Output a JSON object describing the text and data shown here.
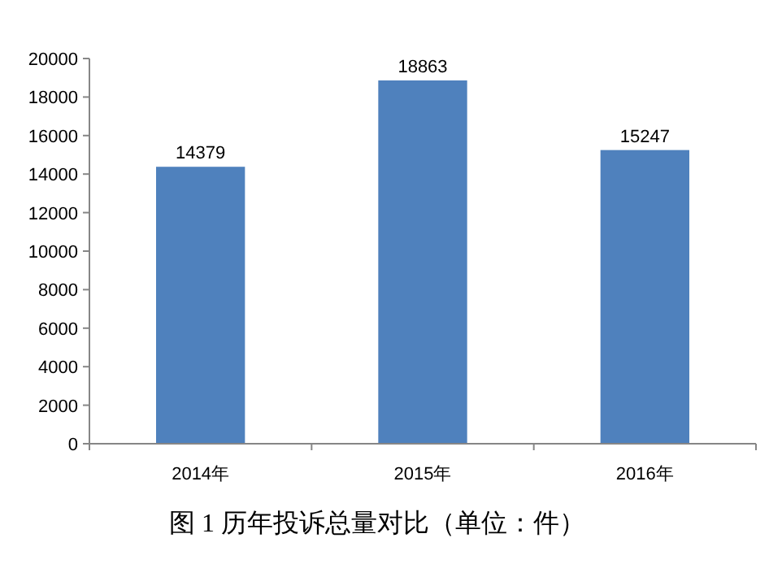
{
  "chart_data": {
    "type": "bar",
    "categories": [
      "2014年",
      "2015年",
      "2016年"
    ],
    "values": [
      14379,
      18863,
      15247
    ],
    "color": "#4f81bd",
    "ylim": [
      0,
      20000
    ],
    "yticks": [
      0,
      2000,
      4000,
      6000,
      8000,
      10000,
      12000,
      14000,
      16000,
      18000,
      20000
    ],
    "data_labels": true,
    "annotations": [
      "图 1 历年投诉总量对比（单位：件）"
    ]
  }
}
